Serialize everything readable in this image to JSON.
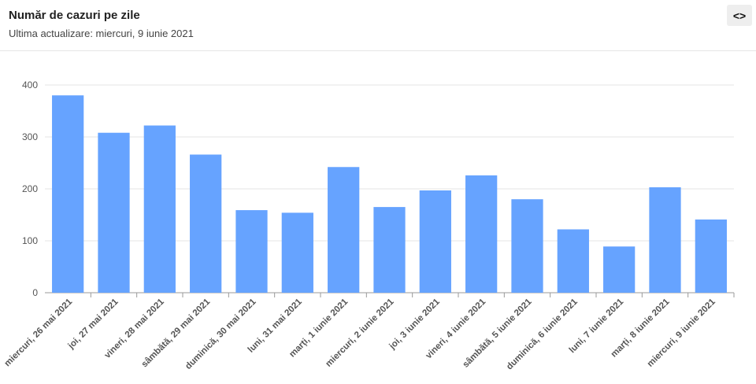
{
  "header": {
    "title": "Număr de cazuri pe zile",
    "subtitle": "Ultima actualizare: miercuri, 9 iunie 2021",
    "embed_icon": "code-brackets-icon",
    "embed_label": "<>"
  },
  "chart_data": {
    "type": "bar",
    "title": "Număr de cazuri pe zile",
    "subtitle": "Ultima actualizare: miercuri, 9 iunie 2021",
    "xlabel": "",
    "ylabel": "",
    "ylim": [
      0,
      400
    ],
    "yticks": [
      0,
      100,
      200,
      300,
      400
    ],
    "grid": true,
    "bar_color": "#66a3ff",
    "categories": [
      "miercuri, 26 mai 2021",
      "joi, 27 mai 2021",
      "vineri, 28 mai 2021",
      "sâmbătă, 29 mai 2021",
      "duminică, 30 mai 2021",
      "luni, 31 mai 2021",
      "marți, 1 iunie 2021",
      "miercuri, 2 iunie 2021",
      "joi, 3 iunie 2021",
      "vineri, 4 iunie 2021",
      "sâmbătă, 5 iunie 2021",
      "duminică, 6 iunie 2021",
      "luni, 7 iunie 2021",
      "marți, 8 iunie 2021",
      "miercuri, 9 iunie 2021"
    ],
    "values": [
      380,
      308,
      322,
      266,
      159,
      154,
      242,
      165,
      197,
      226,
      180,
      122,
      89,
      203,
      141
    ]
  }
}
